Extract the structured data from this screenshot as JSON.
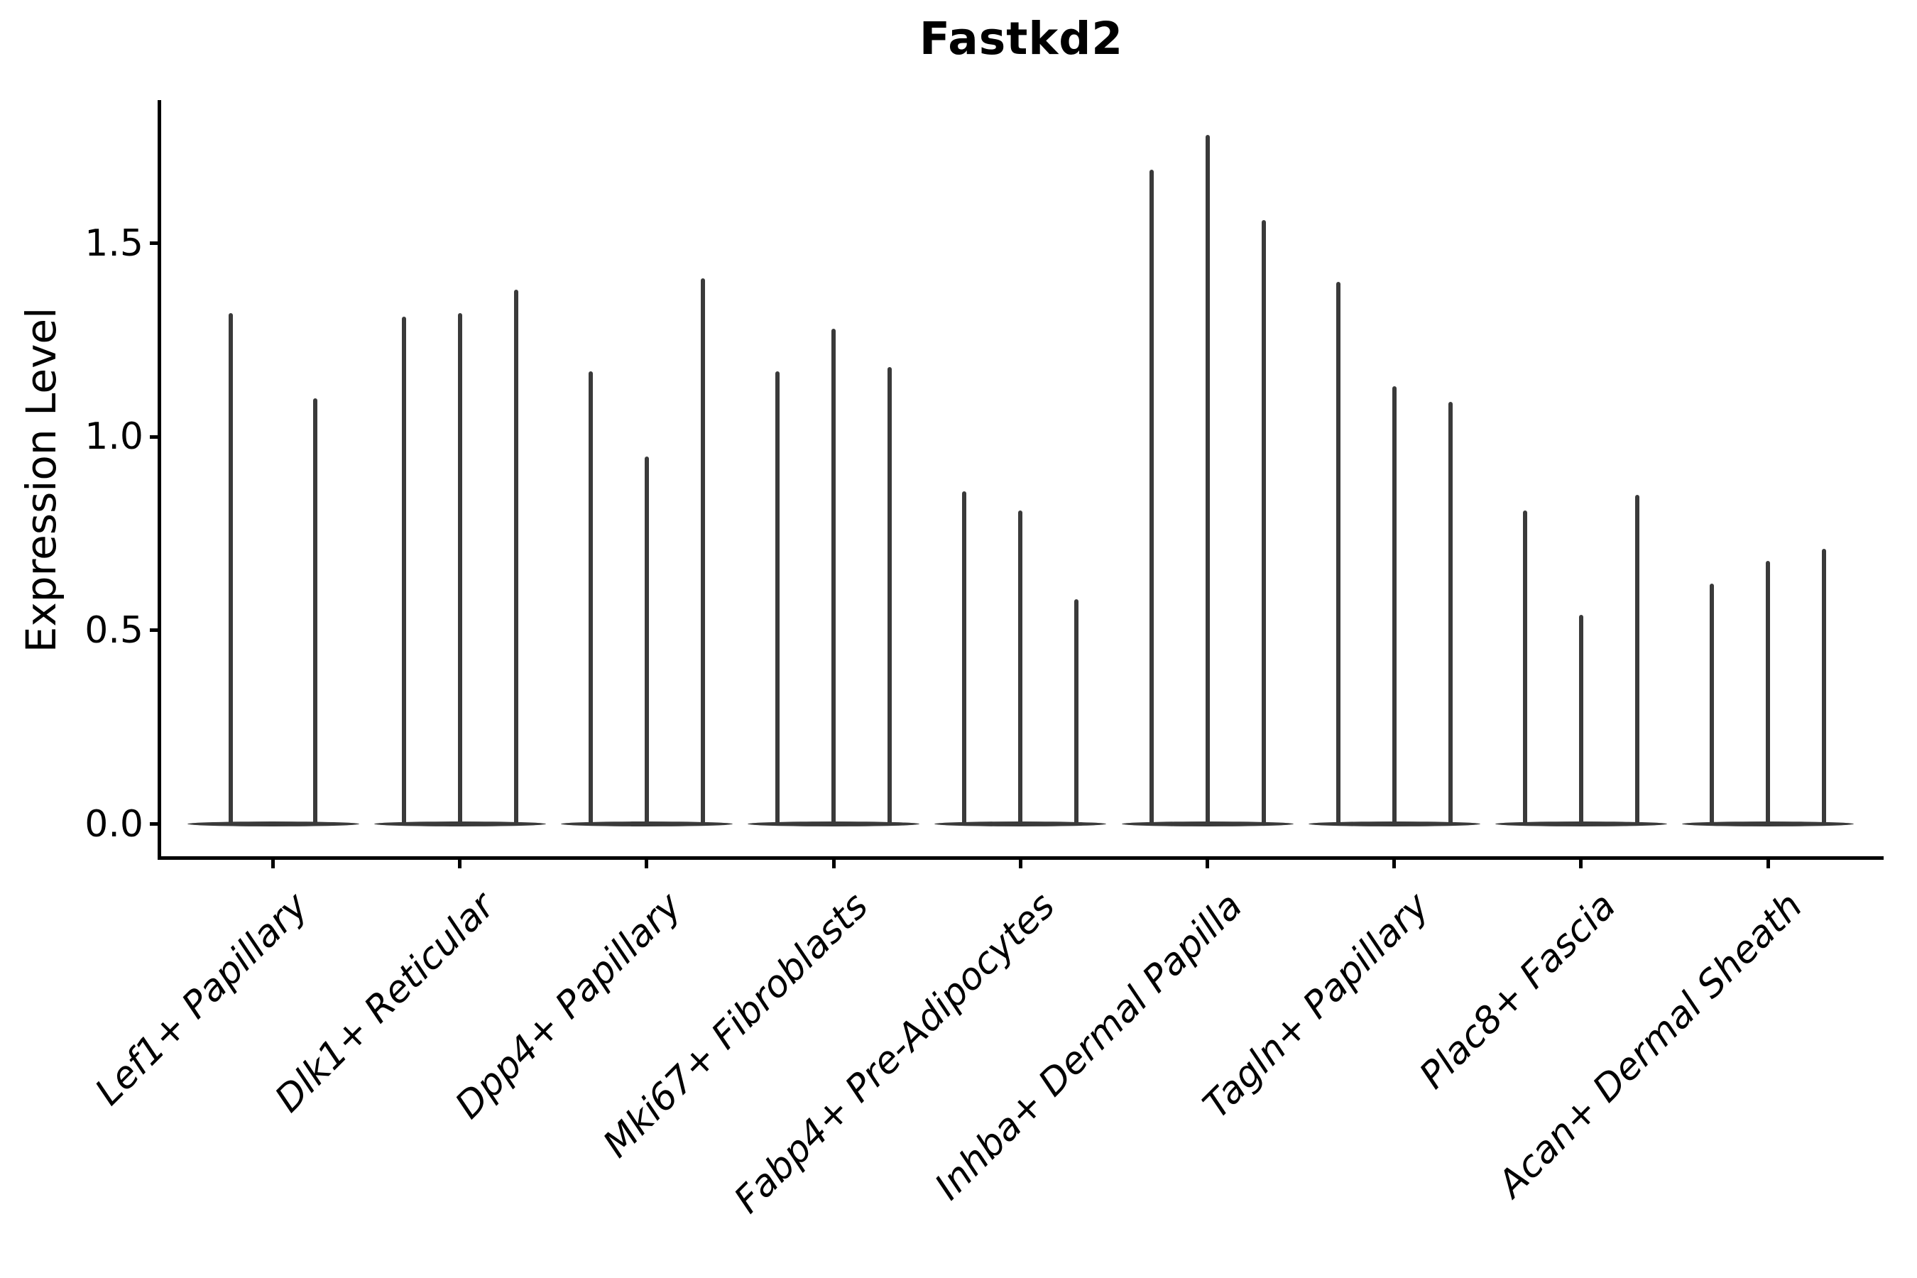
{
  "title": "Fastkd2",
  "y_axis_label": "Expression Level",
  "chart_data": {
    "type": "violin",
    "title": "Fastkd2",
    "subtitle": "",
    "xlabel": "",
    "ylabel": "Expression Level",
    "grid": false,
    "legend_position": "none",
    "background_color": "#ffffff",
    "violin_color": "#3a3a3a",
    "axis_color": "#000000",
    "x_label_rotation_deg": 45,
    "x_label_style": "italic",
    "ylim": [
      -0.09,
      1.87
    ],
    "ytick_values": [
      0.0,
      0.5,
      1.0,
      1.5
    ],
    "ytick_labels": [
      "0.0",
      "0.5",
      "1.0",
      "1.5"
    ],
    "categories": [
      "Lef1+ Papillary",
      "Dlk1+ Reticular",
      "Dpp4+ Papillary",
      "Mki67+ Fibroblasts",
      "Fabp4+ Pre-Adipocytes",
      "Inhba+ Dermal Papilla",
      "Tagln+ Papillary",
      "Plac8+ Fascia",
      "Acan+ Dermal Sheath"
    ],
    "series": [
      {
        "category": "Lef1+ Papillary",
        "violin_peak_values": [
          1.32,
          1.1
        ]
      },
      {
        "category": "Dlk1+ Reticular",
        "violin_peak_values": [
          1.31,
          1.32,
          1.38
        ]
      },
      {
        "category": "Dpp4+ Papillary",
        "violin_peak_values": [
          1.17,
          0.95,
          1.41
        ]
      },
      {
        "category": "Mki67+ Fibroblasts",
        "violin_peak_values": [
          1.17,
          1.28,
          1.18
        ]
      },
      {
        "category": "Fabp4+ Pre-Adipocytes",
        "violin_peak_values": [
          0.86,
          0.81,
          0.58
        ]
      },
      {
        "category": "Inhba+ Dermal Papilla",
        "violin_peak_values": [
          1.69,
          1.78,
          1.56
        ]
      },
      {
        "category": "Tagln+ Papillary",
        "violin_peak_values": [
          1.4,
          1.13,
          1.09
        ]
      },
      {
        "category": "Plac8+ Fascia",
        "violin_peak_values": [
          0.81,
          0.54,
          0.85
        ]
      },
      {
        "category": "Acan+ Dermal Sheath",
        "violin_peak_values": [
          0.62,
          0.68,
          0.71
        ]
      }
    ],
    "baseline_value": 0.0,
    "description": "Thin needle-like violins rising from a flat dense mass of zero values at baseline; 2-3 violins (samples) per cell-type group."
  }
}
